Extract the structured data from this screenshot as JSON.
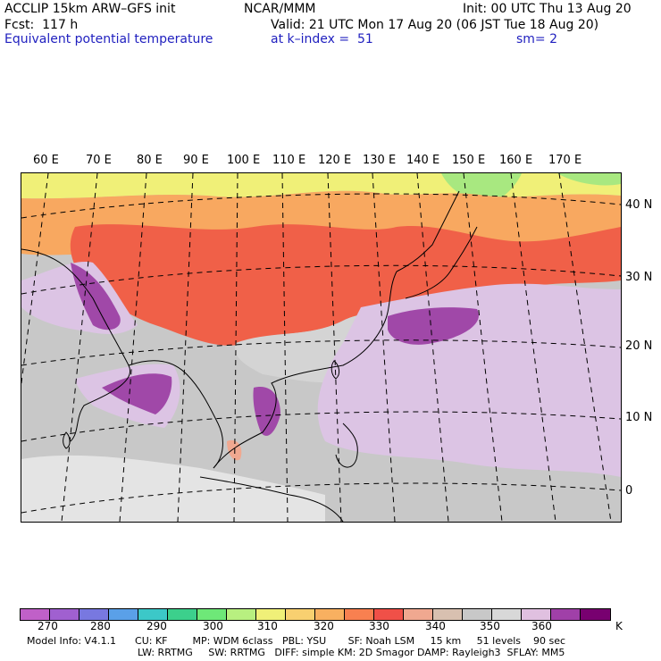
{
  "header": {
    "title_left": "ACCLIP 15km ARW–GFS init",
    "source": "NCAR/MMM",
    "init": "Init: 00 UTC Thu 13 Aug 20",
    "fcst": "Fcst:  117 h",
    "valid": "Valid: 21 UTC Mon 17 Aug 20 (06 JST Tue 18 Aug 20)",
    "field": "Equivalent potential temperature",
    "level": "at k–index =  51",
    "smoothing": "sm= 2"
  },
  "map": {
    "lon_labels": [
      "60 E",
      "70 E",
      "80 E",
      "90 E",
      "100 E",
      "110 E",
      "120 E",
      "130 E",
      "140 E",
      "150 E",
      "160 E",
      "170 E"
    ],
    "lat_labels": [
      "40 N",
      "30 N",
      "20 N",
      "10 N",
      "0"
    ]
  },
  "colorbar": {
    "unit": "K",
    "colors": [
      "#c060c8",
      "#a060d0",
      "#7878e0",
      "#5aa0e8",
      "#3cc8c8",
      "#3cd08c",
      "#6ee878",
      "#b8f080",
      "#f0f078",
      "#f8d070",
      "#f8b060",
      "#f88050",
      "#f05048",
      "#f0a890",
      "#d8c0b0",
      "#c8c8c8",
      "#d8d8d8",
      "#e0c0e0",
      "#a040a8",
      "#780070"
    ],
    "tick_labels": [
      "270",
      "280",
      "290",
      "300",
      "310",
      "320",
      "330",
      "340",
      "350",
      "360"
    ]
  },
  "model_info": {
    "line1": "Model Info: V4.1.1      CU: KF        MP: WDM 6class   PBL: YSU       SF: Noah LSM     15 km     51 levels    90 sec",
    "line2": "LW: RRTMG     SW: RRTMG   DIFF: simple KM: 2D Smagor DAMP: Rayleigh3  SFLAY: MM5"
  }
}
